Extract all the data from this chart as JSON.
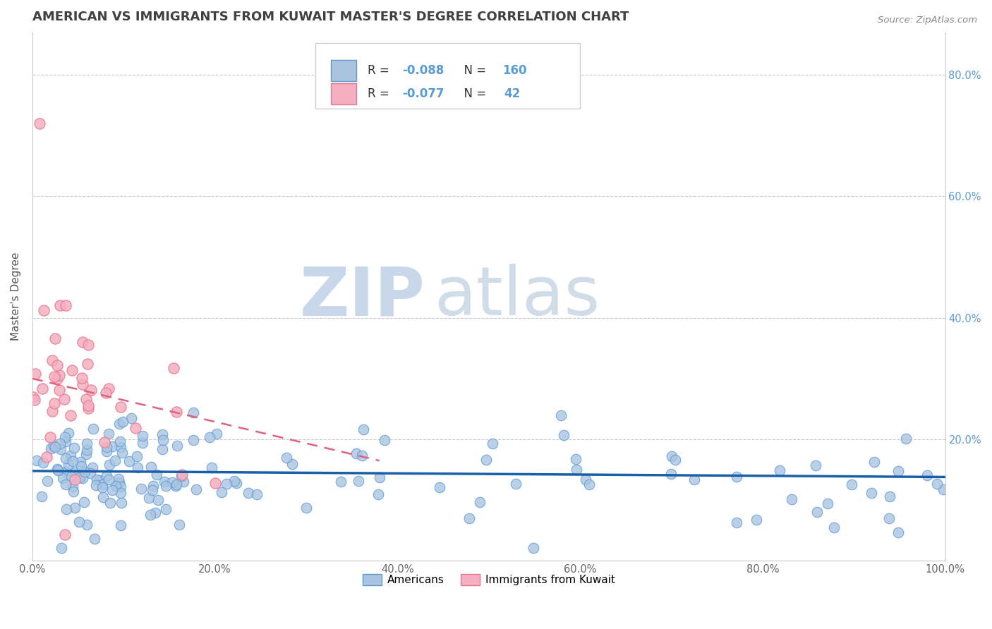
{
  "title": "AMERICAN VS IMMIGRANTS FROM KUWAIT MASTER'S DEGREE CORRELATION CHART",
  "source": "Source: ZipAtlas.com",
  "xlabel": "",
  "ylabel": "Master's Degree",
  "watermark_zip": "ZIP",
  "watermark_atlas": "atlas",
  "xlim": [
    0.0,
    1.0
  ],
  "ylim": [
    0.0,
    0.87
  ],
  "xtick_labels": [
    "0.0%",
    "20.0%",
    "40.0%",
    "60.0%",
    "80.0%",
    "100.0%"
  ],
  "xtick_vals": [
    0.0,
    0.2,
    0.4,
    0.6,
    0.8,
    1.0
  ],
  "ytick_vals": [
    0.2,
    0.4,
    0.6,
    0.8
  ],
  "right_ytick_labels": [
    "20.0%",
    "40.0%",
    "60.0%",
    "80.0%"
  ],
  "american_color": "#aac4e0",
  "american_edge_color": "#5b9bd5",
  "kuwait_color": "#f5afc0",
  "kuwait_edge_color": "#e8758f",
  "american_R": -0.088,
  "american_N": 160,
  "kuwait_R": -0.077,
  "kuwait_N": 42,
  "legend_american_label": "Americans",
  "legend_kuwait_label": "Immigrants from Kuwait",
  "background_color": "#ffffff",
  "grid_color": "#c8c8c8",
  "title_color": "#404040",
  "watermark_color_zip": "#c8d8ea",
  "watermark_color_atlas": "#d0dce8",
  "american_trend_color": "#1a5faa",
  "kuwait_trend_color": "#e06080",
  "legend_box_color": "#e8e8e8",
  "right_axis_color": "#5b9bd5"
}
